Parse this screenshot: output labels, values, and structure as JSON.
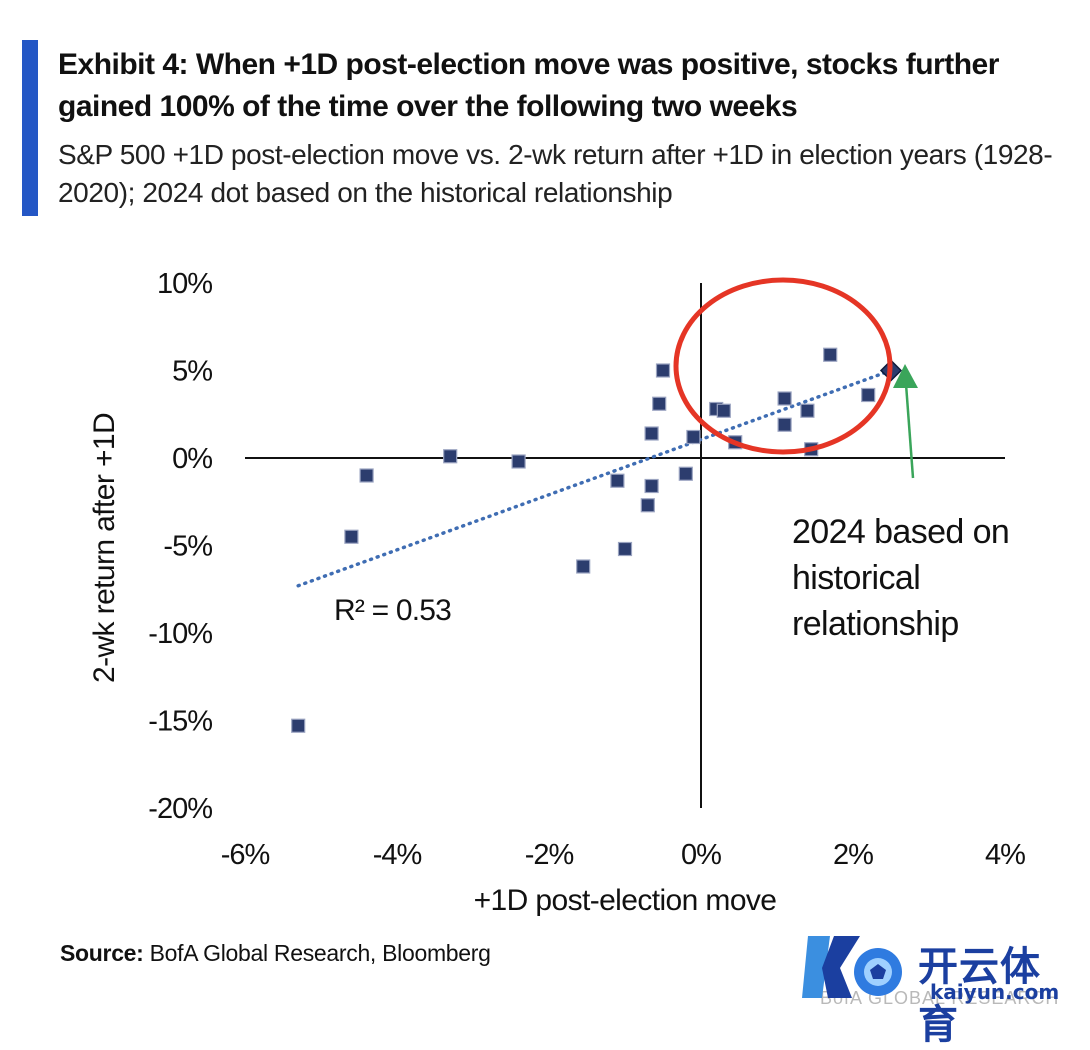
{
  "header": {
    "title": "Exhibit 4: When +1D post-election move was positive, stocks further gained 100% of the time over the following two weeks",
    "subtitle": "S&P 500 +1D post-election move vs. 2-wk return after +1D in election years (1928-2020); 2024 dot based on the historical relationship",
    "accent_color": "#2457c5"
  },
  "chart_data": {
    "type": "scatter",
    "title": "",
    "xlabel": "+1D post-election move",
    "ylabel": "2-wk return after +1D",
    "xlim": [
      -6,
      4
    ],
    "ylim": [
      -20,
      10
    ],
    "x_ticks": [
      -6,
      -4,
      -2,
      0,
      2,
      4
    ],
    "y_ticks": [
      10,
      5,
      0,
      -5,
      -10,
      -15,
      -20
    ],
    "x_tick_labels": [
      "-6%",
      "-4%",
      "-2%",
      "0%",
      "2%",
      "4%"
    ],
    "y_tick_labels": [
      "10%",
      "5%",
      "0%",
      "-5%",
      "-10%",
      "-15%",
      "-20%"
    ],
    "grid": false,
    "series": [
      {
        "marker": "square",
        "color": "#2c3d6e",
        "points": [
          {
            "x": -5.3,
            "y": -15.3
          },
          {
            "x": -4.6,
            "y": -4.5
          },
          {
            "x": -4.4,
            "y": -1.0
          },
          {
            "x": -3.3,
            "y": 0.1
          },
          {
            "x": -2.4,
            "y": -0.2
          },
          {
            "x": -1.55,
            "y": -6.2
          },
          {
            "x": -1.1,
            "y": -1.3
          },
          {
            "x": -1.0,
            "y": -5.2
          },
          {
            "x": -0.7,
            "y": -2.7
          },
          {
            "x": -0.65,
            "y": -1.6
          },
          {
            "x": -0.65,
            "y": 1.4
          },
          {
            "x": -0.55,
            "y": 3.1
          },
          {
            "x": -0.5,
            "y": 5.0
          },
          {
            "x": -0.2,
            "y": -0.9
          },
          {
            "x": -0.1,
            "y": 1.2
          },
          {
            "x": 0.2,
            "y": 2.8
          },
          {
            "x": 0.3,
            "y": 2.7
          },
          {
            "x": 0.45,
            "y": 0.9
          },
          {
            "x": 1.1,
            "y": 3.4
          },
          {
            "x": 1.1,
            "y": 1.9
          },
          {
            "x": 1.4,
            "y": 2.7
          },
          {
            "x": 1.45,
            "y": 0.5
          },
          {
            "x": 1.7,
            "y": 5.9
          },
          {
            "x": 2.2,
            "y": 3.6
          }
        ]
      },
      {
        "marker": "diamond",
        "color": "#2c3d6e",
        "points": [
          {
            "x": 2.5,
            "y": 5.0
          }
        ]
      }
    ],
    "trendline": {
      "x0": -5.3,
      "y0": -7.3,
      "x1": 2.5,
      "y1": 5.0,
      "color": "#3f6db3"
    },
    "annotations": {
      "r_squared": "R² = 0.53",
      "callout": [
        "2024 based on",
        "historical",
        "relationship"
      ],
      "ellipse_color": "#e53525",
      "arrow_color": "#3aa55a"
    }
  },
  "source": {
    "label": "Source:",
    "text": " BofA Global Research, Bloomberg"
  },
  "watermark": {
    "brand": "开云体育",
    "site": "kaiyun.com",
    "faint": "BofA GLOBAL RESEARCH",
    "color": "#1b3fa0"
  }
}
